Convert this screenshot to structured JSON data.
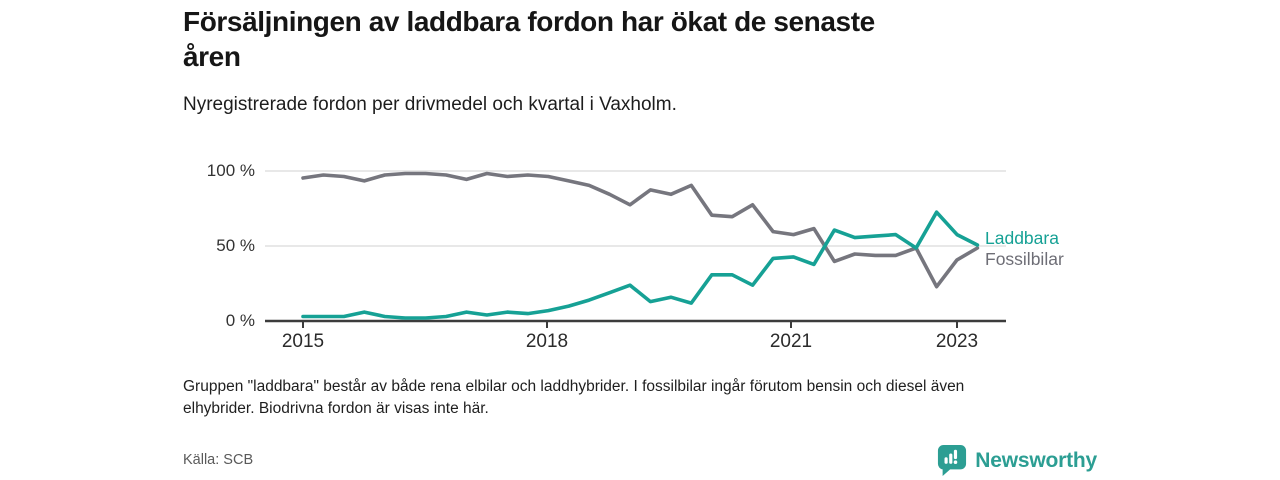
{
  "header": {
    "title": "Försäljningen av laddbara fordon har ökat de senaste\nåren",
    "subtitle": "Nyregistrerade fordon per drivmedel och kvartal i Vaxholm."
  },
  "chart_data": {
    "type": "line",
    "unit": "percent",
    "title": "Nyregistrerade fordon per drivmedel och kvartal i Vaxholm",
    "x": [
      "2015 Q1",
      "2015 Q2",
      "2015 Q3",
      "2015 Q4",
      "2016 Q1",
      "2016 Q2",
      "2016 Q3",
      "2016 Q4",
      "2017 Q1",
      "2017 Q2",
      "2017 Q3",
      "2017 Q4",
      "2018 Q1",
      "2018 Q2",
      "2018 Q3",
      "2018 Q4",
      "2019 Q1",
      "2019 Q2",
      "2019 Q3",
      "2019 Q4",
      "2020 Q1",
      "2020 Q2",
      "2020 Q3",
      "2020 Q4",
      "2021 Q1",
      "2021 Q2",
      "2021 Q3",
      "2021 Q4",
      "2022 Q1",
      "2022 Q2",
      "2022 Q3",
      "2022 Q4",
      "2023 Q1",
      "2023 Q2"
    ],
    "series": [
      {
        "name": "Laddbara",
        "color": "#16A195",
        "values": [
          3,
          3,
          3,
          6,
          3,
          2,
          2,
          3,
          6,
          4,
          6,
          5,
          7,
          10,
          14,
          19,
          24,
          13,
          16,
          12,
          31,
          31,
          24,
          42,
          43,
          38,
          61,
          56,
          57,
          58,
          49,
          73,
          58,
          51
        ]
      },
      {
        "name": "Fossilbilar",
        "color": "#76767E",
        "values": [
          96,
          98,
          97,
          94,
          98,
          99,
          99,
          98,
          95,
          99,
          97,
          98,
          97,
          94,
          91,
          85,
          78,
          88,
          85,
          91,
          71,
          70,
          78,
          60,
          58,
          62,
          40,
          45,
          44,
          44,
          49,
          23,
          41,
          49
        ]
      }
    ],
    "yticks": [
      "100 %",
      "50 %",
      "0 %"
    ],
    "xticks": [
      "2015",
      "2018",
      "2021",
      "2023"
    ],
    "ylim": [
      0,
      100
    ],
    "grid": "horizontal",
    "legend_position": "right-of-line-ends"
  },
  "note": "Gruppen \"laddbara\" består av både rena elbilar och laddhybrider. I fossilbilar ingår förutom bensin och diesel även\nelhybrider. Biodrivna fordon är visas inte här.",
  "footer": {
    "source": "Källa: SCB",
    "brand": "Newsworthy"
  }
}
